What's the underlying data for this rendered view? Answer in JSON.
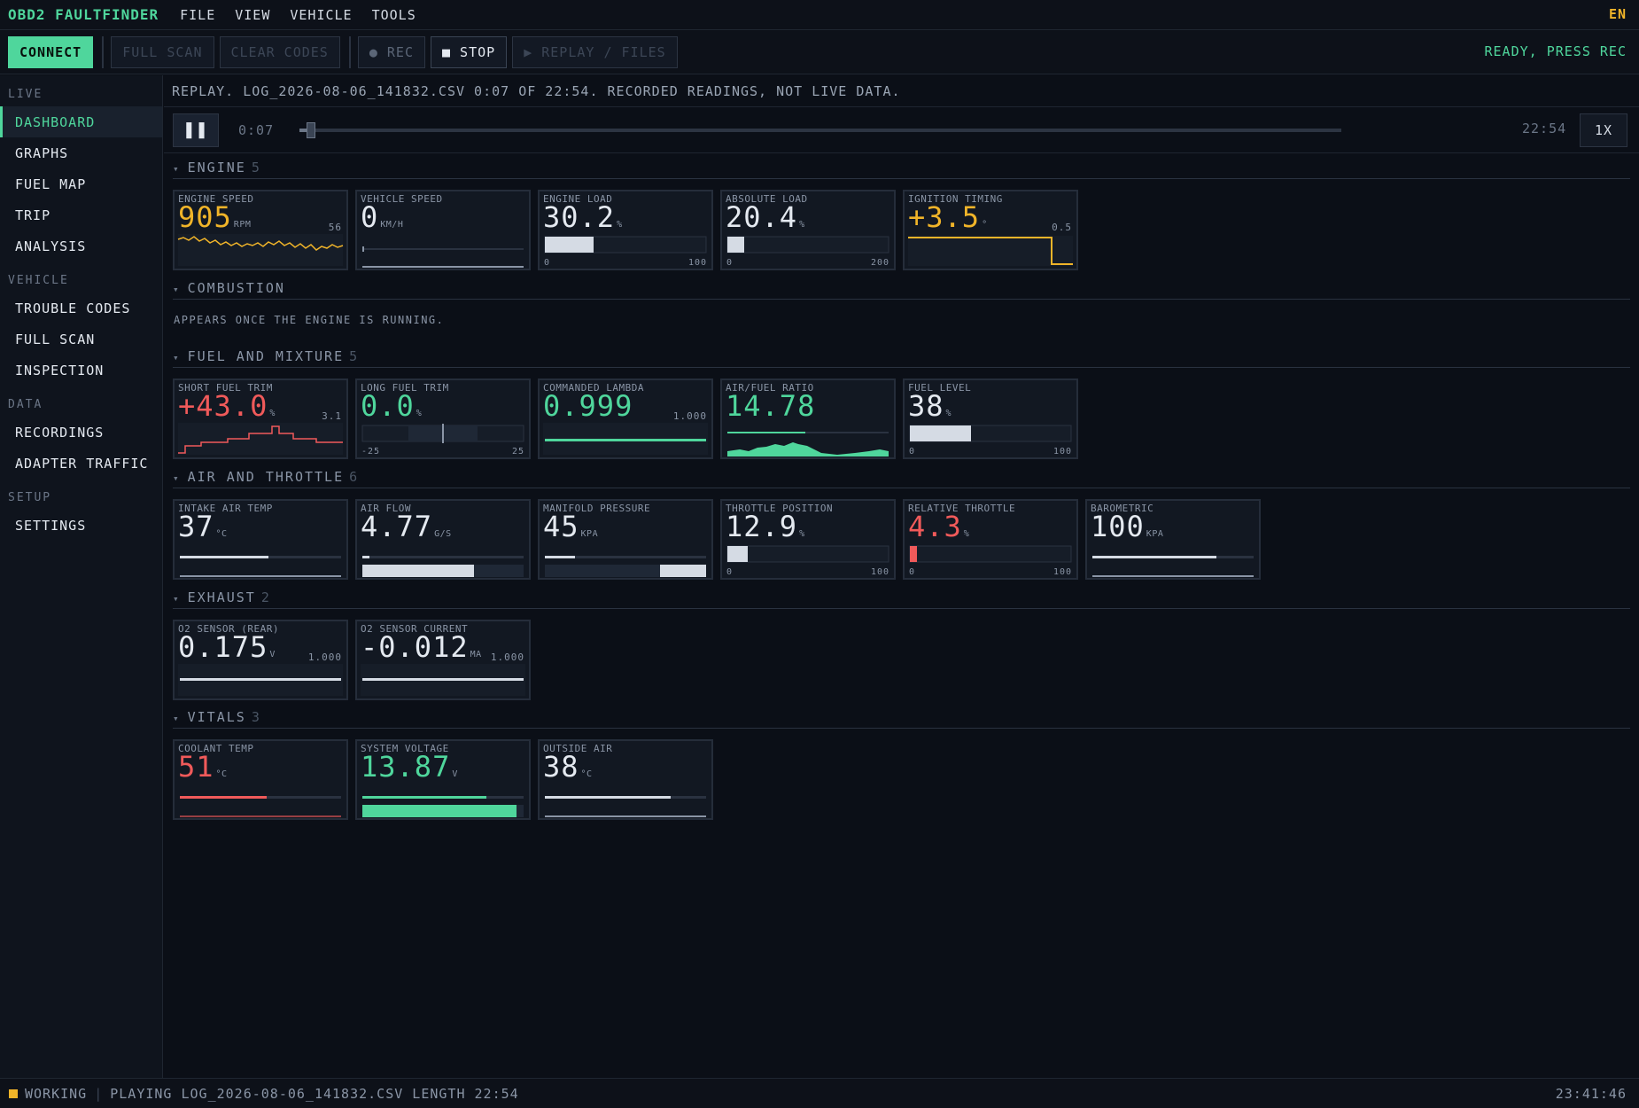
{
  "app": {
    "title": "OBD2 FAULTFINDER",
    "lang": "EN"
  },
  "menu": [
    "FILE",
    "VIEW",
    "VEHICLE",
    "TOOLS"
  ],
  "toolbar": {
    "connect": "CONNECT",
    "full_scan": "FULL SCAN",
    "clear_codes": "CLEAR CODES",
    "rec": "● REC",
    "stop": "■ STOP",
    "replay": "▶ REPLAY / FILES",
    "status": "READY, PRESS REC"
  },
  "sidebar": {
    "sections": [
      {
        "title": "LIVE",
        "items": [
          "DASHBOARD",
          "GRAPHS",
          "FUEL MAP",
          "TRIP",
          "ANALYSIS"
        ]
      },
      {
        "title": "VEHICLE",
        "items": [
          "TROUBLE CODES",
          "FULL SCAN",
          "INSPECTION"
        ]
      },
      {
        "title": "DATA",
        "items": [
          "RECORDINGS",
          "ADAPTER TRAFFIC"
        ]
      },
      {
        "title": "SETUP",
        "items": [
          "SETTINGS"
        ]
      }
    ],
    "active": "DASHBOARD"
  },
  "replay": {
    "banner": "REPLAY. LOG_2026-08-06_141832.CSV 0:07 OF 22:54. RECORDED READINGS, NOT LIVE DATA.",
    "current": "0:07",
    "total": "22:54",
    "speed": "1X",
    "progress": 0.005
  },
  "sections": [
    {
      "name": "ENGINE",
      "count": "5"
    },
    {
      "name": "COMBUSTION",
      "count": "",
      "note": "APPEARS ONCE THE ENGINE IS RUNNING."
    },
    {
      "name": "FUEL AND MIXTURE",
      "count": "5"
    },
    {
      "name": "AIR AND THROTTLE",
      "count": "6"
    },
    {
      "name": "EXHAUST",
      "count": "2"
    },
    {
      "name": "VITALS",
      "count": "3"
    }
  ],
  "cards": {
    "engine_speed": {
      "label": "ENGINE SPEED",
      "value": "905",
      "unit": "RPM",
      "corner": "56"
    },
    "vehicle_speed": {
      "label": "VEHICLE SPEED",
      "value": "0",
      "unit": "KM/H"
    },
    "engine_load": {
      "label": "ENGINE LOAD",
      "value": "30.2",
      "unit": "%",
      "min": "0",
      "max": "100",
      "level": 0.302
    },
    "absolute_load": {
      "label": "ABSOLUTE LOAD",
      "value": "20.4",
      "unit": "%",
      "min": "0",
      "max": "200",
      "level": 0.102
    },
    "ignition_timing": {
      "label": "IGNITION TIMING",
      "value": "+3.5",
      "unit": "°",
      "corner": "0.5"
    },
    "short_fuel_trim": {
      "label": "SHORT FUEL TRIM",
      "value": "+43.0",
      "unit": "%",
      "corner": "3.1"
    },
    "long_fuel_trim": {
      "label": "LONG FUEL TRIM",
      "value": "0.0",
      "unit": "%",
      "min": "-25",
      "max": "25"
    },
    "commanded_lambda": {
      "label": "COMMANDED LAMBDA",
      "value": "0.999",
      "corner": "1.000"
    },
    "air_fuel_ratio": {
      "label": "AIR/FUEL RATIO",
      "value": "14.78"
    },
    "fuel_level": {
      "label": "FUEL LEVEL",
      "value": "38",
      "unit": "%",
      "min": "0",
      "max": "100",
      "level": 0.38
    },
    "intake_air_temp": {
      "label": "INTAKE AIR TEMP",
      "value": "37",
      "unit": "°C"
    },
    "air_flow": {
      "label": "AIR FLOW",
      "value": "4.77",
      "unit": "G/S"
    },
    "manifold_pressure": {
      "label": "MANIFOLD PRESSURE",
      "value": "45",
      "unit": "KPA"
    },
    "throttle_position": {
      "label": "THROTTLE POSITION",
      "value": "12.9",
      "unit": "%",
      "min": "0",
      "max": "100",
      "level": 0.129
    },
    "relative_throttle": {
      "label": "RELATIVE THROTTLE",
      "value": "4.3",
      "unit": "%",
      "min": "0",
      "max": "100",
      "level": 0.043
    },
    "barometric": {
      "label": "BAROMETRIC",
      "value": "100",
      "unit": "KPA"
    },
    "o2_sensor_rear": {
      "label": "O2 SENSOR (REAR)",
      "value": "0.175",
      "unit": "V",
      "corner": "1.000"
    },
    "o2_sensor_current": {
      "label": "O2 SENSOR CURRENT",
      "value": "-0.012",
      "unit": "MA",
      "corner": "1.000"
    },
    "coolant_temp": {
      "label": "COOLANT TEMP",
      "value": "51",
      "unit": "°C"
    },
    "system_voltage": {
      "label": "SYSTEM VOLTAGE",
      "value": "13.87",
      "unit": "V"
    },
    "outside_air": {
      "label": "OUTSIDE AIR",
      "value": "38",
      "unit": "°C"
    }
  },
  "statusbar": {
    "state": "WORKING",
    "message": "PLAYING LOG_2026-08-06_141832.CSV LENGTH 22:54",
    "clock": "23:41:46"
  },
  "colors": {
    "accent": "#4fd69c",
    "warn": "#f0b429",
    "alert": "#f05a5a"
  }
}
